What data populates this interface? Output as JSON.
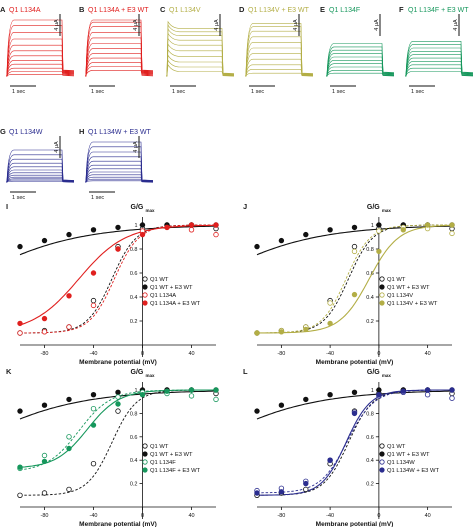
{
  "colors": {
    "L134A": "#e0201f",
    "L134V": "#b3ae46",
    "L134F": "#16975c",
    "L134W": "#2b2d8f",
    "black": "#111111"
  },
  "trace_panels": [
    {
      "letter": "A",
      "title": "Q1 L134A",
      "color_key": "L134A",
      "steady": [
        0.03,
        0.08,
        0.14,
        0.21,
        0.28,
        0.36,
        0.45,
        0.55,
        0.66,
        0.78,
        0.9,
        1.0
      ],
      "tail": 0.3,
      "peak": 0
    },
    {
      "letter": "B",
      "title": "Q1 L134A + E3 WT",
      "color_key": "L134A",
      "steady": [
        0.1,
        0.17,
        0.24,
        0.32,
        0.4,
        0.49,
        0.58,
        0.68,
        0.78,
        0.88,
        0.96,
        1.0
      ],
      "tail": 0.3,
      "peak": 0
    },
    {
      "letter": "C",
      "title": "Q1 L134V",
      "color_key": "L134V",
      "steady": [
        0.08,
        0.16,
        0.25,
        0.35,
        0.45,
        0.55,
        0.64,
        0.72,
        0.79,
        0.85
      ],
      "tail": 0.15,
      "peak": 0.12
    },
    {
      "letter": "D",
      "title": "Q1 L134V + E3 WT",
      "color_key": "L134V",
      "steady": [
        0.05,
        0.12,
        0.2,
        0.3,
        0.4,
        0.5,
        0.6,
        0.7,
        0.8,
        0.88,
        0.94
      ],
      "tail": 0.15,
      "peak": 0
    },
    {
      "letter": "E",
      "title": "Q1 L134F",
      "color_key": "L134F",
      "steady": [
        0.05,
        0.1,
        0.16,
        0.22,
        0.28,
        0.34,
        0.4,
        0.46,
        0.52,
        0.58
      ],
      "tail": 0.2,
      "peak": 0
    },
    {
      "letter": "F",
      "title": "Q1 L134F + E3 WT",
      "color_key": "L134F",
      "steady": [
        0.08,
        0.14,
        0.2,
        0.26,
        0.32,
        0.38,
        0.44,
        0.5,
        0.56,
        0.62
      ],
      "tail": 0.2,
      "peak": 0
    },
    {
      "letter": "G",
      "title": "Q1 L134W",
      "color_key": "L134W",
      "steady": [
        0.02,
        0.05,
        0.08,
        0.12,
        0.17,
        0.23,
        0.3,
        0.38,
        0.47,
        0.57,
        0.68,
        0.8
      ],
      "tail": 0.15,
      "peak": 0
    },
    {
      "letter": "H",
      "title": "Q1 L134W + E3 WT",
      "color_key": "L134W",
      "steady": [
        0.03,
        0.07,
        0.12,
        0.18,
        0.25,
        0.33,
        0.42,
        0.52,
        0.63,
        0.75,
        0.88,
        1.0
      ],
      "tail": 0.15,
      "peak": 0
    }
  ],
  "trace_scale": {
    "time_label": "1 sec",
    "current_label": "4 μA"
  },
  "chart_data": [
    {
      "type": "scatter",
      "letter": "I",
      "ylabel_main": "G/G",
      "ylabel_sub": "max",
      "xlabel": "Membrane potential (mV)",
      "xlim": [
        -100,
        60
      ],
      "ylim": [
        0,
        1.0
      ],
      "xticks": [
        -80,
        -40,
        0,
        40
      ],
      "yticks": [
        0.2,
        0.4,
        0.6,
        0.8,
        1.0
      ],
      "x": [
        -100,
        -80,
        -60,
        -40,
        -20,
        0,
        20,
        40,
        60
      ],
      "legend": [
        "Q1 WT",
        "Q1 WT + E3 WT",
        "Q1 L134A",
        "Q1 L134A + E3 WT"
      ],
      "series": [
        {
          "name": "Q1 WT",
          "color_key": "black",
          "filled": false,
          "dashed": true,
          "values": [
            0.1,
            0.12,
            0.15,
            0.37,
            0.82,
            0.97,
            1.0,
            1.0,
            0.97
          ],
          "v50": -25,
          "k": 10,
          "bottom": 0.1
        },
        {
          "name": "Q1 WT + E3 WT",
          "color_key": "black",
          "filled": true,
          "dashed": false,
          "values": [
            0.82,
            0.87,
            0.92,
            0.96,
            0.98,
            1.0,
            1.0,
            1.0,
            1.0
          ],
          "v50": -150,
          "k": 45,
          "bottom": 0
        },
        {
          "name": "Q1 L134A",
          "color_key": "L134A",
          "filled": false,
          "dashed": true,
          "values": [
            0.1,
            0.11,
            0.15,
            0.33,
            0.8,
            0.95,
            0.98,
            0.96,
            0.92
          ],
          "v50": -23,
          "k": 10,
          "bottom": 0.1
        },
        {
          "name": "Q1 L134A + E3 WT",
          "color_key": "L134A",
          "filled": true,
          "dashed": false,
          "values": [
            0.18,
            0.22,
            0.41,
            0.6,
            0.8,
            0.92,
            0.98,
            1.0,
            1.0
          ],
          "v50": -52,
          "k": 19,
          "bottom": 0.1
        }
      ]
    },
    {
      "type": "scatter",
      "letter": "J",
      "ylabel_main": "G/G",
      "ylabel_sub": "max",
      "xlabel": "Membrane potential (mV)",
      "xlim": [
        -100,
        60
      ],
      "ylim": [
        0,
        1.0
      ],
      "xticks": [
        -80,
        -40,
        0,
        40
      ],
      "yticks": [
        0.2,
        0.4,
        0.6,
        0.8,
        1.0
      ],
      "x": [
        -100,
        -80,
        -60,
        -40,
        -20,
        0,
        20,
        40,
        60
      ],
      "legend": [
        "Q1 WT",
        "Q1 WT + E3 WT",
        "Q1 L134V",
        "Q1 L134V + E3 WT"
      ],
      "series": [
        {
          "name": "Q1 WT",
          "color_key": "black",
          "filled": false,
          "dashed": true,
          "values": [
            0.1,
            0.12,
            0.15,
            0.37,
            0.82,
            0.97,
            1.0,
            1.0,
            0.97
          ],
          "v50": -25,
          "k": 10,
          "bottom": 0.1
        },
        {
          "name": "Q1 WT + E3 WT",
          "color_key": "black",
          "filled": true,
          "dashed": false,
          "values": [
            0.82,
            0.87,
            0.92,
            0.96,
            0.98,
            1.0,
            1.0,
            1.0,
            1.0
          ],
          "v50": -150,
          "k": 45,
          "bottom": 0
        },
        {
          "name": "Q1 L134V",
          "color_key": "L134V",
          "filled": false,
          "dashed": true,
          "values": [
            0.1,
            0.12,
            0.15,
            0.35,
            0.78,
            0.95,
            0.98,
            0.97,
            0.93
          ],
          "v50": -27,
          "k": 10,
          "bottom": 0.1
        },
        {
          "name": "Q1 L134V + E3 WT",
          "color_key": "L134V",
          "filled": true,
          "dashed": false,
          "values": [
            0.1,
            0.11,
            0.13,
            0.18,
            0.42,
            0.78,
            0.96,
            1.0,
            1.0
          ],
          "v50": -8,
          "k": 12,
          "bottom": 0.1
        }
      ]
    },
    {
      "type": "scatter",
      "letter": "K",
      "ylabel_main": "G/G",
      "ylabel_sub": "max",
      "xlabel": "Membrane potential (mV)",
      "xlim": [
        -100,
        60
      ],
      "ylim": [
        0,
        1.0
      ],
      "xticks": [
        -80,
        -40,
        0,
        40
      ],
      "yticks": [
        0.2,
        0.4,
        0.6,
        0.8,
        1.0
      ],
      "x": [
        -100,
        -80,
        -60,
        -40,
        -20,
        0,
        20,
        40,
        60
      ],
      "legend": [
        "Q1 WT",
        "Q1 WT + E3 WT",
        "Q1 L134F",
        "Q1 L134F + E3 WT"
      ],
      "series": [
        {
          "name": "Q1 WT",
          "color_key": "black",
          "filled": false,
          "dashed": true,
          "values": [
            0.1,
            0.12,
            0.15,
            0.37,
            0.82,
            0.97,
            1.0,
            1.0,
            0.97
          ],
          "v50": -25,
          "k": 10,
          "bottom": 0.1
        },
        {
          "name": "Q1 WT + E3 WT",
          "color_key": "black",
          "filled": true,
          "dashed": false,
          "values": [
            0.82,
            0.87,
            0.92,
            0.96,
            0.98,
            1.0,
            1.0,
            1.0,
            1.0
          ],
          "v50": -150,
          "k": 45,
          "bottom": 0
        },
        {
          "name": "Q1 L134F",
          "color_key": "L134F",
          "filled": false,
          "dashed": true,
          "values": [
            0.33,
            0.44,
            0.6,
            0.84,
            0.94,
            0.98,
            0.97,
            0.95,
            0.92
          ],
          "v50": -52,
          "k": 13,
          "bottom": 0.3
        },
        {
          "name": "Q1 L134F + E3 WT",
          "color_key": "L134F",
          "filled": true,
          "dashed": false,
          "values": [
            0.34,
            0.39,
            0.5,
            0.7,
            0.88,
            0.96,
            0.99,
            1.0,
            1.0
          ],
          "v50": -45,
          "k": 13,
          "bottom": 0.33
        }
      ]
    },
    {
      "type": "scatter",
      "letter": "L",
      "ylabel_main": "G/G",
      "ylabel_sub": "max",
      "xlabel": "Membrane potential (mV)",
      "xlim": [
        -100,
        60
      ],
      "ylim": [
        0,
        1.0
      ],
      "xticks": [
        -80,
        -40,
        0,
        40
      ],
      "yticks": [
        0.2,
        0.4,
        0.6,
        0.8,
        1.0
      ],
      "x": [
        -100,
        -80,
        -60,
        -40,
        -20,
        0,
        20,
        40,
        60
      ],
      "legend": [
        "Q1 WT",
        "Q1 WT + E3 WT",
        "Q1 L134W",
        "Q1 L134W + E3 WT"
      ],
      "series": [
        {
          "name": "Q1 WT",
          "color_key": "black",
          "filled": false,
          "dashed": true,
          "values": [
            0.1,
            0.12,
            0.15,
            0.37,
            0.82,
            0.97,
            1.0,
            1.0,
            0.97
          ],
          "v50": -25,
          "k": 10,
          "bottom": 0.1
        },
        {
          "name": "Q1 WT + E3 WT",
          "color_key": "black",
          "filled": true,
          "dashed": false,
          "values": [
            0.82,
            0.87,
            0.92,
            0.96,
            0.98,
            1.0,
            1.0,
            1.0,
            1.0
          ],
          "v50": -150,
          "k": 45,
          "bottom": 0
        },
        {
          "name": "Q1 L134W",
          "color_key": "L134W",
          "filled": false,
          "dashed": true,
          "values": [
            0.14,
            0.16,
            0.22,
            0.4,
            0.81,
            0.95,
            0.98,
            0.96,
            0.93
          ],
          "v50": -26,
          "k": 11,
          "bottom": 0.12
        },
        {
          "name": "Q1 L134W + E3 WT",
          "color_key": "L134W",
          "filled": true,
          "dashed": false,
          "values": [
            0.12,
            0.13,
            0.2,
            0.4,
            0.8,
            0.96,
            0.99,
            1.0,
            1.0
          ],
          "v50": -27,
          "k": 10,
          "bottom": 0.1
        }
      ]
    }
  ]
}
